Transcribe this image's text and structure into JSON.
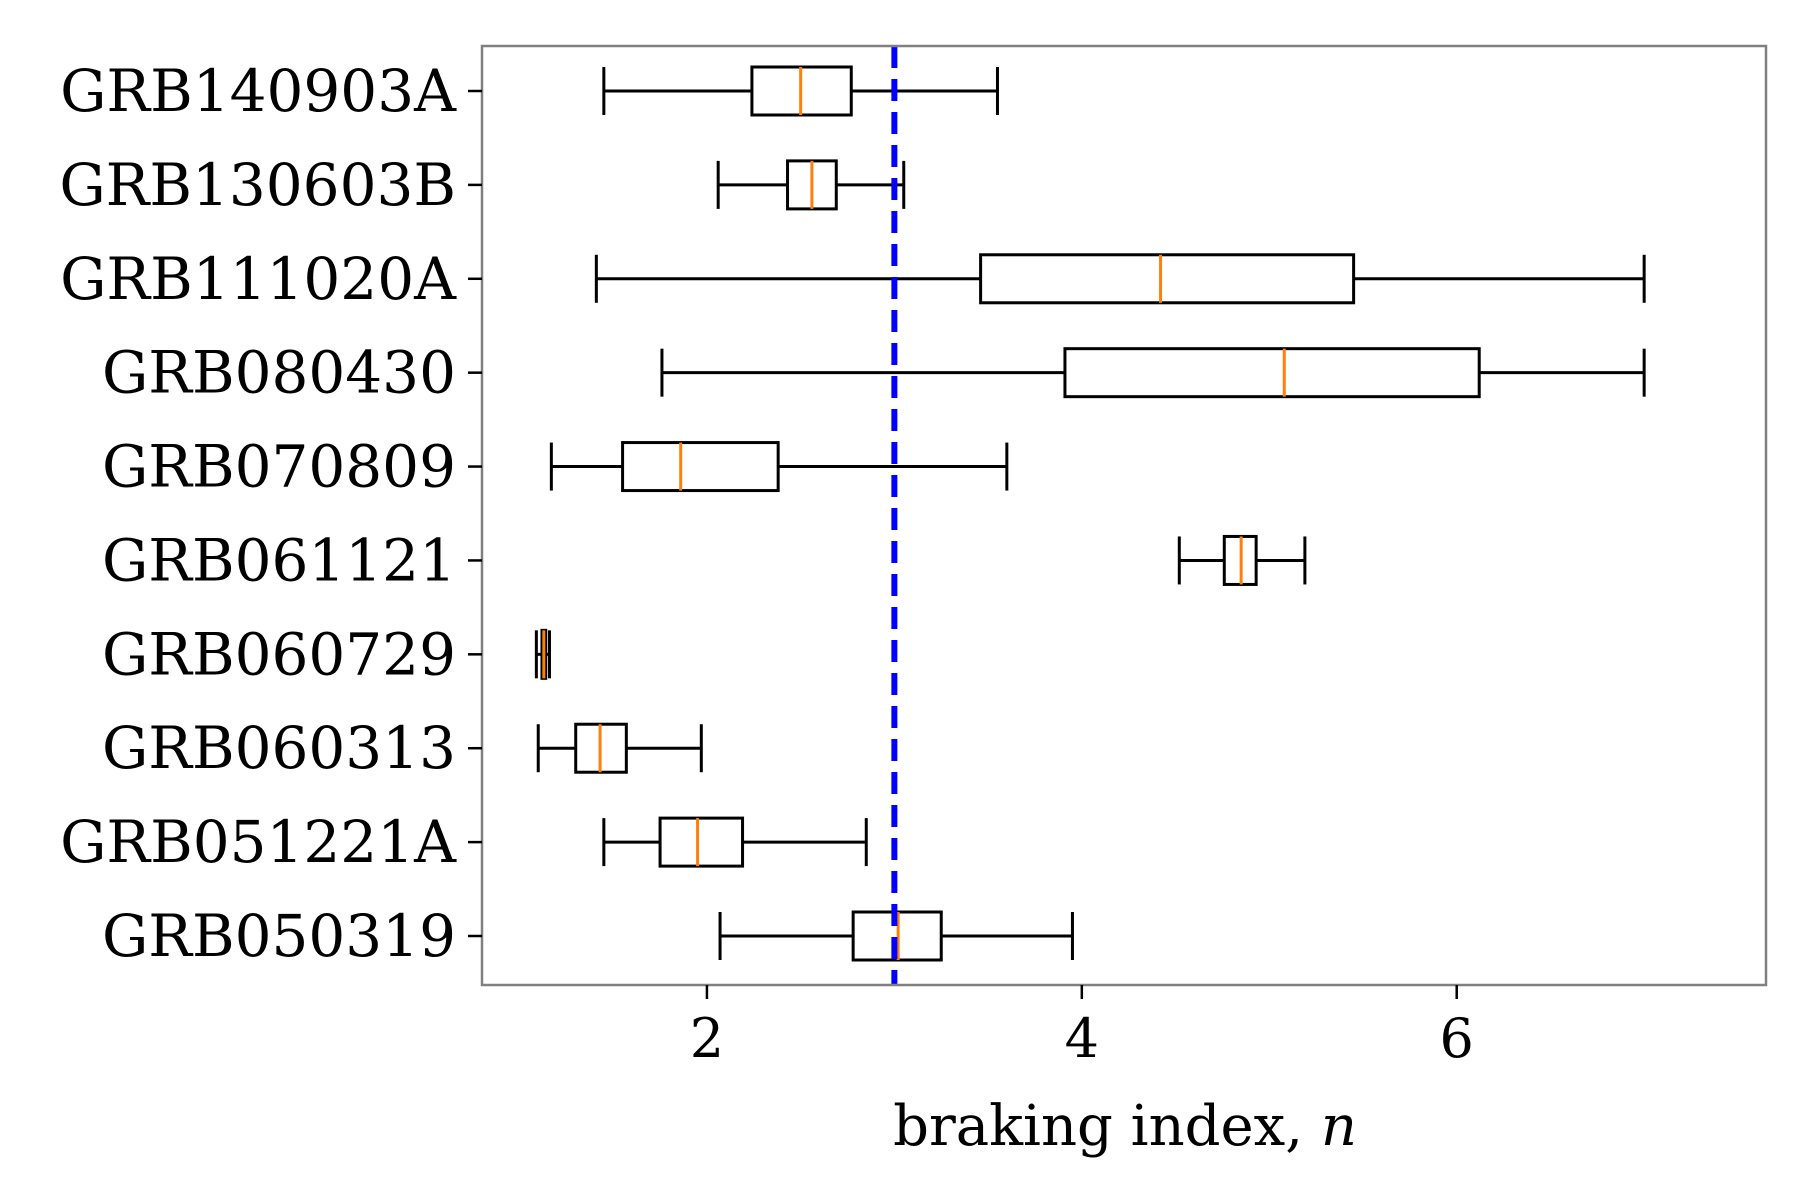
{
  "chart_data": {
    "type": "boxplot",
    "orientation": "horizontal",
    "xlabel": "braking index,",
    "xlabel_var": "n",
    "xlim": [
      0.8,
      7.65
    ],
    "xticks": [
      2,
      4,
      6
    ],
    "reference_line": {
      "x": 3.0,
      "color": "#0000ff",
      "style": "dashed"
    },
    "colors": {
      "box": "#000000",
      "median": "#ff7f0e",
      "frame": "#808080"
    },
    "grid": false,
    "legend": "none",
    "series": [
      {
        "name": "GRB140903A",
        "whislo": 1.45,
        "q1": 2.24,
        "med": 2.5,
        "q3": 2.77,
        "whishi": 3.55
      },
      {
        "name": "GRB130603B",
        "whislo": 2.06,
        "q1": 2.43,
        "med": 2.56,
        "q3": 2.69,
        "whishi": 3.05
      },
      {
        "name": "GRB111020A",
        "whislo": 1.41,
        "q1": 3.46,
        "med": 4.42,
        "q3": 5.45,
        "whishi": 7.0
      },
      {
        "name": "GRB080430",
        "whislo": 1.76,
        "q1": 3.91,
        "med": 5.08,
        "q3": 6.12,
        "whishi": 7.0
      },
      {
        "name": "GRB070809",
        "whislo": 1.17,
        "q1": 1.55,
        "med": 1.86,
        "q3": 2.38,
        "whishi": 3.6
      },
      {
        "name": "GRB061121",
        "whislo": 4.52,
        "q1": 4.76,
        "med": 4.85,
        "q3": 4.93,
        "whishi": 5.19
      },
      {
        "name": "GRB060729",
        "whislo": 1.09,
        "q1": 1.12,
        "med": 1.13,
        "q3": 1.14,
        "whishi": 1.16
      },
      {
        "name": "GRB060313",
        "whislo": 1.1,
        "q1": 1.3,
        "med": 1.43,
        "q3": 1.57,
        "whishi": 1.97
      },
      {
        "name": "GRB051221A",
        "whislo": 1.45,
        "q1": 1.75,
        "med": 1.95,
        "q3": 2.19,
        "whishi": 2.85
      },
      {
        "name": "GRB050319",
        "whislo": 2.07,
        "q1": 2.78,
        "med": 3.02,
        "q3": 3.25,
        "whishi": 3.95
      }
    ]
  }
}
